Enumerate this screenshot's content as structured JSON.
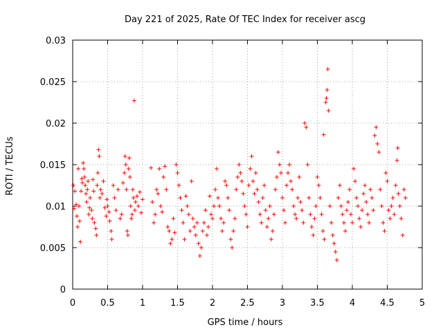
{
  "chart_data": {
    "type": "scatter",
    "title": "Day 221 of 2025, Rate Of TEC Index for receiver ascg",
    "xlabel": "GPS time / hours",
    "ylabel": "ROTI / TECUs",
    "xlim": [
      0,
      5
    ],
    "ylim": [
      0,
      0.03
    ],
    "x_ticks": [
      "0",
      "0.5",
      "1",
      "1.5",
      "2",
      "2.5",
      "3",
      "3.5",
      "4",
      "4.5",
      "5"
    ],
    "y_ticks": [
      "0",
      "0.005",
      "0.01",
      "0.015",
      "0.02",
      "0.025",
      "0.03"
    ],
    "grid": true,
    "marker": "plus",
    "color": "#ff0000",
    "points": [
      [
        0.01,
        0.0125
      ],
      [
        0.02,
        0.0097
      ],
      [
        0.03,
        0.0118
      ],
      [
        0.05,
        0.0102
      ],
      [
        0.06,
        0.0088
      ],
      [
        0.07,
        0.0075
      ],
      [
        0.08,
        0.0145
      ],
      [
        0.09,
        0.01
      ],
      [
        0.1,
        0.0082
      ],
      [
        0.11,
        0.0057
      ],
      [
        0.12,
        0.0118
      ],
      [
        0.13,
        0.0133
      ],
      [
        0.14,
        0.0128
      ],
      [
        0.15,
        0.0152
      ],
      [
        0.16,
        0.0145
      ],
      [
        0.17,
        0.0135
      ],
      [
        0.18,
        0.0125
      ],
      [
        0.19,
        0.0115
      ],
      [
        0.2,
        0.0105
      ],
      [
        0.21,
        0.012
      ],
      [
        0.22,
        0.013
      ],
      [
        0.23,
        0.009
      ],
      [
        0.24,
        0.0098
      ],
      [
        0.25,
        0.011
      ],
      [
        0.27,
        0.0095
      ],
      [
        0.28,
        0.0085
      ],
      [
        0.29,
        0.0132
      ],
      [
        0.3,
        0.0118
      ],
      [
        0.31,
        0.008
      ],
      [
        0.33,
        0.0073
      ],
      [
        0.34,
        0.0065
      ],
      [
        0.35,
        0.0125
      ],
      [
        0.36,
        0.014
      ],
      [
        0.37,
        0.0168
      ],
      [
        0.38,
        0.016
      ],
      [
        0.39,
        0.011
      ],
      [
        0.4,
        0.012
      ],
      [
        0.42,
        0.0115
      ],
      [
        0.44,
        0.013
      ],
      [
        0.46,
        0.0098
      ],
      [
        0.48,
        0.0088
      ],
      [
        0.49,
        0.0108
      ],
      [
        0.5,
        0.01
      ],
      [
        0.52,
        0.0093
      ],
      [
        0.53,
        0.0082
      ],
      [
        0.55,
        0.007
      ],
      [
        0.56,
        0.006
      ],
      [
        0.58,
        0.0125
      ],
      [
        0.6,
        0.011
      ],
      [
        0.62,
        0.0095
      ],
      [
        0.65,
        0.012
      ],
      [
        0.68,
        0.0085
      ],
      [
        0.7,
        0.009
      ],
      [
        0.72,
        0.0128
      ],
      [
        0.74,
        0.014
      ],
      [
        0.75,
        0.016
      ],
      [
        0.76,
        0.015
      ],
      [
        0.77,
        0.012
      ],
      [
        0.78,
        0.007
      ],
      [
        0.79,
        0.0065
      ],
      [
        0.8,
        0.0145
      ],
      [
        0.81,
        0.0158
      ],
      [
        0.82,
        0.0135
      ],
      [
        0.83,
        0.01
      ],
      [
        0.84,
        0.0085
      ],
      [
        0.85,
        0.009
      ],
      [
        0.86,
        0.012
      ],
      [
        0.87,
        0.011
      ],
      [
        0.88,
        0.0227
      ],
      [
        0.89,
        0.0095
      ],
      [
        0.9,
        0.0105
      ],
      [
        0.92,
        0.0112
      ],
      [
        0.94,
        0.01
      ],
      [
        0.96,
        0.0117
      ],
      [
        0.98,
        0.0092
      ],
      [
        1.0,
        0.0108
      ],
      [
        1.12,
        0.0146
      ],
      [
        1.14,
        0.0105
      ],
      [
        1.16,
        0.008
      ],
      [
        1.18,
        0.009
      ],
      [
        1.2,
        0.012
      ],
      [
        1.22,
        0.0115
      ],
      [
        1.24,
        0.0145
      ],
      [
        1.26,
        0.01
      ],
      [
        1.28,
        0.0093
      ],
      [
        1.3,
        0.0135
      ],
      [
        1.32,
        0.0148
      ],
      [
        1.34,
        0.012
      ],
      [
        1.36,
        0.0075
      ],
      [
        1.38,
        0.007
      ],
      [
        1.4,
        0.0055
      ],
      [
        1.42,
        0.006
      ],
      [
        1.44,
        0.0085
      ],
      [
        1.46,
        0.0068
      ],
      [
        1.48,
        0.015
      ],
      [
        1.5,
        0.014
      ],
      [
        1.52,
        0.0125
      ],
      [
        1.54,
        0.011
      ],
      [
        1.56,
        0.0095
      ],
      [
        1.58,
        0.008
      ],
      [
        1.6,
        0.006
      ],
      [
        1.62,
        0.0112
      ],
      [
        1.64,
        0.01
      ],
      [
        1.66,
        0.009
      ],
      [
        1.68,
        0.007
      ],
      [
        1.7,
        0.013
      ],
      [
        1.72,
        0.0085
      ],
      [
        1.74,
        0.0075
      ],
      [
        1.76,
        0.0065
      ],
      [
        1.78,
        0.008
      ],
      [
        1.8,
        0.0055
      ],
      [
        1.82,
        0.004
      ],
      [
        1.84,
        0.005
      ],
      [
        1.86,
        0.007
      ],
      [
        1.88,
        0.008
      ],
      [
        1.9,
        0.0095
      ],
      [
        1.92,
        0.0065
      ],
      [
        1.94,
        0.0075
      ],
      [
        1.96,
        0.0112
      ],
      [
        1.98,
        0.009
      ],
      [
        2.0,
        0.0085
      ],
      [
        2.02,
        0.01
      ],
      [
        2.04,
        0.012
      ],
      [
        2.06,
        0.0145
      ],
      [
        2.08,
        0.011
      ],
      [
        2.1,
        0.01
      ],
      [
        2.12,
        0.0085
      ],
      [
        2.14,
        0.007
      ],
      [
        2.16,
        0.008
      ],
      [
        2.18,
        0.013
      ],
      [
        2.2,
        0.0125
      ],
      [
        2.22,
        0.011
      ],
      [
        2.24,
        0.0095
      ],
      [
        2.26,
        0.006
      ],
      [
        2.28,
        0.005
      ],
      [
        2.3,
        0.007
      ],
      [
        2.32,
        0.0085
      ],
      [
        2.34,
        0.012
      ],
      [
        2.36,
        0.0135
      ],
      [
        2.38,
        0.015
      ],
      [
        2.4,
        0.014
      ],
      [
        2.42,
        0.013
      ],
      [
        2.44,
        0.0115
      ],
      [
        2.46,
        0.01
      ],
      [
        2.48,
        0.009
      ],
      [
        2.5,
        0.0075
      ],
      [
        2.52,
        0.0125
      ],
      [
        2.54,
        0.0145
      ],
      [
        2.56,
        0.016
      ],
      [
        2.58,
        0.013
      ],
      [
        2.6,
        0.0115
      ],
      [
        2.62,
        0.014
      ],
      [
        2.64,
        0.012
      ],
      [
        2.66,
        0.0105
      ],
      [
        2.68,
        0.009
      ],
      [
        2.7,
        0.008
      ],
      [
        2.72,
        0.011
      ],
      [
        2.74,
        0.0125
      ],
      [
        2.76,
        0.0095
      ],
      [
        2.78,
        0.0075
      ],
      [
        2.8,
        0.0085
      ],
      [
        2.82,
        0.01
      ],
      [
        2.84,
        0.006
      ],
      [
        2.86,
        0.007
      ],
      [
        2.88,
        0.009
      ],
      [
        2.9,
        0.012
      ],
      [
        2.92,
        0.0135
      ],
      [
        2.94,
        0.0165
      ],
      [
        2.96,
        0.015
      ],
      [
        2.98,
        0.014
      ],
      [
        3.0,
        0.011
      ],
      [
        3.02,
        0.0095
      ],
      [
        3.04,
        0.008
      ],
      [
        3.06,
        0.0125
      ],
      [
        3.08,
        0.014
      ],
      [
        3.1,
        0.015
      ],
      [
        3.12,
        0.013
      ],
      [
        3.14,
        0.012
      ],
      [
        3.16,
        0.01
      ],
      [
        3.18,
        0.009
      ],
      [
        3.2,
        0.0085
      ],
      [
        3.22,
        0.011
      ],
      [
        3.24,
        0.0135
      ],
      [
        3.26,
        0.0105
      ],
      [
        3.28,
        0.0095
      ],
      [
        3.3,
        0.008
      ],
      [
        3.32,
        0.02
      ],
      [
        3.34,
        0.0195
      ],
      [
        3.36,
        0.015
      ],
      [
        3.38,
        0.011
      ],
      [
        3.4,
        0.009
      ],
      [
        3.42,
        0.0075
      ],
      [
        3.44,
        0.0065
      ],
      [
        3.46,
        0.0085
      ],
      [
        3.48,
        0.01
      ],
      [
        3.5,
        0.0135
      ],
      [
        3.52,
        0.0125
      ],
      [
        3.54,
        0.011
      ],
      [
        3.56,
        0.009
      ],
      [
        3.58,
        0.007
      ],
      [
        3.59,
        0.0186
      ],
      [
        3.6,
        0.006
      ],
      [
        3.62,
        0.0225
      ],
      [
        3.63,
        0.023
      ],
      [
        3.64,
        0.024
      ],
      [
        3.65,
        0.0265
      ],
      [
        3.66,
        0.0215
      ],
      [
        3.68,
        0.01
      ],
      [
        3.7,
        0.008
      ],
      [
        3.72,
        0.0065
      ],
      [
        3.74,
        0.0055
      ],
      [
        3.76,
        0.0045
      ],
      [
        3.78,
        0.0035
      ],
      [
        3.8,
        0.011
      ],
      [
        3.82,
        0.0125
      ],
      [
        3.84,
        0.01
      ],
      [
        3.86,
        0.009
      ],
      [
        3.88,
        0.008
      ],
      [
        3.9,
        0.007
      ],
      [
        3.92,
        0.0095
      ],
      [
        3.94,
        0.0105
      ],
      [
        3.96,
        0.012
      ],
      [
        3.98,
        0.009
      ],
      [
        4.0,
        0.008
      ],
      [
        4.02,
        0.0145
      ],
      [
        4.04,
        0.013
      ],
      [
        4.06,
        0.011
      ],
      [
        4.08,
        0.01
      ],
      [
        4.1,
        0.0085
      ],
      [
        4.12,
        0.0075
      ],
      [
        4.14,
        0.0095
      ],
      [
        4.16,
        0.0115
      ],
      [
        4.18,
        0.0125
      ],
      [
        4.2,
        0.0105
      ],
      [
        4.22,
        0.009
      ],
      [
        4.24,
        0.008
      ],
      [
        4.26,
        0.012
      ],
      [
        4.28,
        0.011
      ],
      [
        4.3,
        0.0095
      ],
      [
        4.32,
        0.0185
      ],
      [
        4.34,
        0.0195
      ],
      [
        4.36,
        0.0175
      ],
      [
        4.38,
        0.0165
      ],
      [
        4.4,
        0.012
      ],
      [
        4.42,
        0.01
      ],
      [
        4.44,
        0.008
      ],
      [
        4.46,
        0.007
      ],
      [
        4.48,
        0.014
      ],
      [
        4.5,
        0.013
      ],
      [
        4.52,
        0.0095
      ],
      [
        4.54,
        0.0085
      ],
      [
        4.56,
        0.01
      ],
      [
        4.58,
        0.011
      ],
      [
        4.6,
        0.009
      ],
      [
        4.62,
        0.0125
      ],
      [
        4.64,
        0.0155
      ],
      [
        4.65,
        0.017
      ],
      [
        4.66,
        0.0115
      ],
      [
        4.68,
        0.01
      ],
      [
        4.7,
        0.0085
      ],
      [
        4.72,
        0.0065
      ],
      [
        4.74,
        0.012
      ],
      [
        4.76,
        0.011
      ]
    ]
  }
}
